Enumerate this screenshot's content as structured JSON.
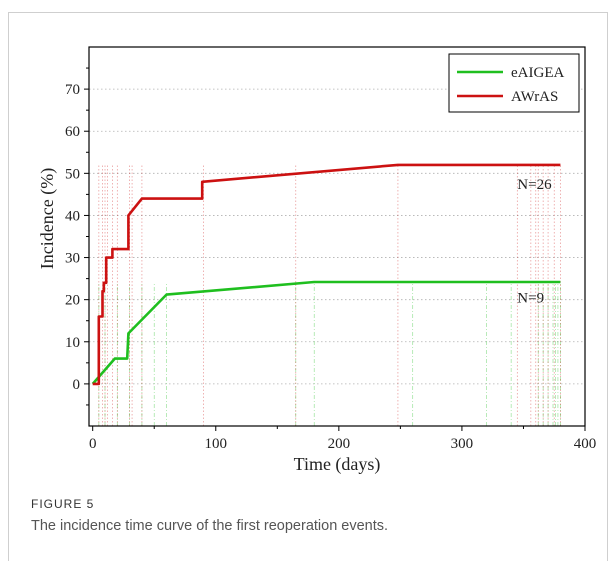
{
  "figure": {
    "label": "FIGURE 5",
    "caption": "The incidence time curve of the first reoperation events."
  },
  "chart_data": {
    "type": "line",
    "xlabel": "Time (days)",
    "ylabel": "Incidence (%)",
    "xlim": [
      -3,
      400
    ],
    "ylim": [
      -10,
      80
    ],
    "xticks": [
      0,
      100,
      200,
      300,
      400
    ],
    "yticks": [
      0,
      10,
      20,
      30,
      40,
      50,
      60,
      70
    ],
    "grid": "horizontal dotted",
    "legend_position": "top-right",
    "series": [
      {
        "name": "eAIGEA",
        "color": "#1fbf1f",
        "step": false,
        "points": [
          [
            0,
            0
          ],
          [
            18,
            6
          ],
          [
            28,
            6
          ],
          [
            29,
            12
          ],
          [
            60,
            21.2
          ],
          [
            180,
            24.2
          ],
          [
            380,
            24.2
          ]
        ],
        "event_times": [
          5,
          10,
          20,
          30,
          40,
          50,
          60,
          165,
          180,
          260,
          320,
          340,
          362,
          366,
          370,
          374,
          376,
          378,
          380
        ],
        "annotation": {
          "text": "N=9",
          "x": 345,
          "y": 20.5
        }
      },
      {
        "name": "AWrAS",
        "color": "#cc1111",
        "step": true,
        "points": [
          [
            0,
            0
          ],
          [
            5,
            0
          ],
          [
            5,
            16
          ],
          [
            8,
            16
          ],
          [
            8,
            22
          ],
          [
            9,
            22
          ],
          [
            9,
            24
          ],
          [
            11,
            24
          ],
          [
            11,
            30
          ],
          [
            16,
            30
          ],
          [
            16,
            32
          ],
          [
            20,
            32
          ],
          [
            20,
            32
          ],
          [
            29,
            32
          ],
          [
            29,
            40
          ],
          [
            40,
            44
          ],
          [
            89,
            44
          ],
          [
            89,
            48
          ],
          [
            248,
            52
          ],
          [
            380,
            52
          ]
        ],
        "event_times": [
          5,
          8,
          10,
          12,
          16,
          20,
          30,
          32,
          40,
          90,
          165,
          248,
          345,
          356,
          360,
          362,
          366,
          370,
          375,
          380
        ],
        "annotation": {
          "text": "N=26",
          "x": 345,
          "y": 47.5
        }
      }
    ]
  }
}
